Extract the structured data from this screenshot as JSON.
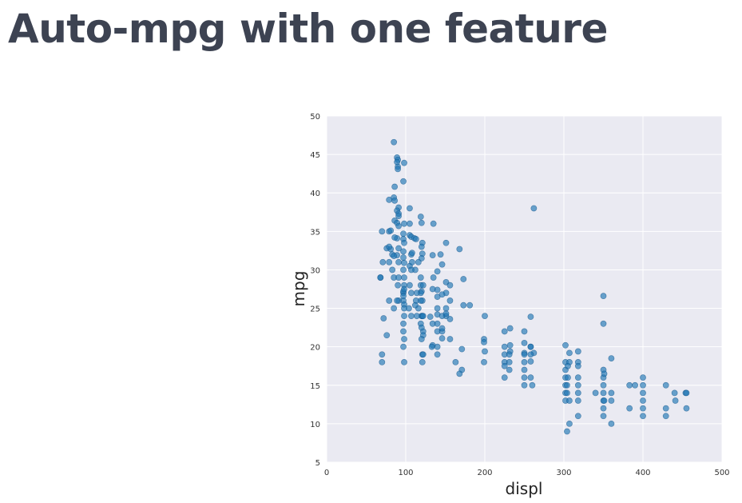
{
  "slide": {
    "title": "Auto-mpg with one feature"
  },
  "colors": {
    "title": "#3d4352",
    "plot_background": "#eaeaf2",
    "grid": "#ffffff",
    "point_fill": "#1f77b4",
    "point_stroke": "#0b4f85"
  },
  "chart_data": {
    "type": "scatter",
    "title": "",
    "xlabel": "displ",
    "ylabel": "mpg",
    "xlim": [
      0,
      500
    ],
    "ylim": [
      5,
      50
    ],
    "xticks": [
      0,
      100,
      200,
      300,
      400,
      500
    ],
    "yticks": [
      5,
      10,
      15,
      20,
      25,
      30,
      35,
      40,
      45,
      50
    ],
    "grid": true,
    "series": [
      {
        "points": [
          [
            85,
            46.6
          ],
          [
            89,
            44.6
          ],
          [
            90,
            44.3
          ],
          [
            89,
            44.0
          ],
          [
            98,
            43.9
          ],
          [
            90,
            43.4
          ],
          [
            90,
            43.1
          ],
          [
            97,
            41.5
          ],
          [
            86,
            40.8
          ],
          [
            79,
            39.1
          ],
          [
            85,
            39.4
          ],
          [
            86,
            39.0
          ],
          [
            91,
            38.1
          ],
          [
            89,
            37.7
          ],
          [
            91,
            37.3
          ],
          [
            105,
            38.0
          ],
          [
            91,
            37.0
          ],
          [
            119,
            36.9
          ],
          [
            86,
            36.4
          ],
          [
            89,
            36.1
          ],
          [
            98,
            36.0
          ],
          [
            105,
            36.0
          ],
          [
            120,
            36.1
          ],
          [
            135,
            36.0
          ],
          [
            91,
            35.7
          ],
          [
            70,
            35.0
          ],
          [
            79,
            35.0
          ],
          [
            81,
            35.1
          ],
          [
            97,
            34.7
          ],
          [
            105,
            34.5
          ],
          [
            107,
            34.3
          ],
          [
            111,
            34.1
          ],
          [
            89,
            34.1
          ],
          [
            97,
            34.0
          ],
          [
            113,
            34.0
          ],
          [
            86,
            34.2
          ],
          [
            121,
            33.5
          ],
          [
            151,
            33.5
          ],
          [
            98,
            33.5
          ],
          [
            91,
            32.8
          ],
          [
            76,
            32.8
          ],
          [
            81,
            32.7
          ],
          [
            97,
            32.4
          ],
          [
            121,
            32.1
          ],
          [
            83,
            32.0
          ],
          [
            107,
            32.0
          ],
          [
            134,
            31.9
          ],
          [
            144,
            32.0
          ],
          [
            168,
            32.7
          ],
          [
            89,
            31.9
          ],
          [
            85,
            31.8
          ],
          [
            97,
            31.6
          ],
          [
            120,
            31.5
          ],
          [
            79,
            31.0
          ],
          [
            71,
            31.0
          ],
          [
            91,
            31.0
          ],
          [
            98,
            30.9
          ],
          [
            105,
            30.5
          ],
          [
            108,
            31.0
          ],
          [
            146,
            30.7
          ],
          [
            112,
            30.0
          ],
          [
            97,
            30.0
          ],
          [
            68,
            29.0
          ],
          [
            85,
            29.0
          ],
          [
            98,
            29.0
          ],
          [
            91,
            29.0
          ],
          [
            135,
            29.0
          ],
          [
            140,
            29.8
          ],
          [
            119,
            28.0
          ],
          [
            98,
            28.0
          ],
          [
            105,
            28.0
          ],
          [
            122,
            28.0
          ],
          [
            151,
            28.4
          ],
          [
            156,
            28.0
          ],
          [
            173,
            28.8
          ],
          [
            97,
            27.0
          ],
          [
            107,
            27.0
          ],
          [
            120,
            27.2
          ],
          [
            119,
            27.0
          ],
          [
            140,
            27.4
          ],
          [
            134,
            27.5
          ],
          [
            151,
            27.0
          ],
          [
            146,
            26.8
          ],
          [
            181,
            25.4
          ],
          [
            97,
            26.0
          ],
          [
            121,
            26.0
          ],
          [
            113,
            26.0
          ],
          [
            140,
            26.5
          ],
          [
            98,
            25.5
          ],
          [
            116,
            25.0
          ],
          [
            98,
            25.0
          ],
          [
            104,
            25.0
          ],
          [
            140,
            25.0
          ],
          [
            120,
            24.0
          ],
          [
            121,
            24.0
          ],
          [
            114,
            24.0
          ],
          [
            98,
            24.0
          ],
          [
            140,
            24.2
          ],
          [
            151,
            24.0
          ],
          [
            156,
            23.6
          ],
          [
            107,
            24.0
          ],
          [
            131,
            23.9
          ],
          [
            146,
            24.0
          ],
          [
            200,
            24.0
          ],
          [
            119,
            23.0
          ],
          [
            97,
            23.0
          ],
          [
            122,
            22.0
          ],
          [
            97,
            22.0
          ],
          [
            140,
            22.0
          ],
          [
            225,
            22.0
          ],
          [
            232,
            22.4
          ],
          [
            250,
            22.0
          ],
          [
            98,
            21.0
          ],
          [
            122,
            21.5
          ],
          [
            120,
            21.0
          ],
          [
            146,
            21.1
          ],
          [
            199,
            21.0
          ],
          [
            232,
            20.2
          ],
          [
            250,
            20.5
          ],
          [
            258,
            20.0
          ],
          [
            97,
            20.0
          ],
          [
            140,
            20.0
          ],
          [
            134,
            20.2
          ],
          [
            171,
            19.7
          ],
          [
            199,
            20.6
          ],
          [
            225,
            20.0
          ],
          [
            232,
            19.4
          ],
          [
            250,
            19.2
          ],
          [
            262,
            19.2
          ],
          [
            302,
            20.2
          ],
          [
            121,
            19.0
          ],
          [
            140,
            19.0
          ],
          [
            200,
            19.4
          ],
          [
            225,
            19.0
          ],
          [
            231,
            19.0
          ],
          [
            250,
            19.0
          ],
          [
            258,
            19.0
          ],
          [
            307,
            19.2
          ],
          [
            318,
            19.4
          ],
          [
            70,
            19.0
          ],
          [
            70,
            18.0
          ],
          [
            98,
            18.0
          ],
          [
            121,
            18.0
          ],
          [
            163,
            18.0
          ],
          [
            199,
            18.0
          ],
          [
            225,
            18.0
          ],
          [
            231,
            18.0
          ],
          [
            250,
            18.0
          ],
          [
            258,
            18.1
          ],
          [
            302,
            18.0
          ],
          [
            307,
            18.0
          ],
          [
            318,
            18.0
          ],
          [
            360,
            18.5
          ],
          [
            171,
            17.0
          ],
          [
            231,
            17.0
          ],
          [
            250,
            17.0
          ],
          [
            302,
            17.0
          ],
          [
            305,
            17.5
          ],
          [
            318,
            17.5
          ],
          [
            350,
            17.0
          ],
          [
            168,
            16.5
          ],
          [
            225,
            16.0
          ],
          [
            250,
            16.0
          ],
          [
            258,
            16.0
          ],
          [
            302,
            16.0
          ],
          [
            305,
            16.0
          ],
          [
            318,
            16.0
          ],
          [
            350,
            16.0
          ],
          [
            351,
            16.5
          ],
          [
            400,
            16.0
          ],
          [
            250,
            15.0
          ],
          [
            260,
            15.0
          ],
          [
            302,
            15.0
          ],
          [
            304,
            15.0
          ],
          [
            318,
            15.0
          ],
          [
            350,
            15.0
          ],
          [
            383,
            15.0
          ],
          [
            390,
            15.0
          ],
          [
            400,
            15.0
          ],
          [
            429,
            15.0
          ],
          [
            302,
            14.0
          ],
          [
            304,
            14.0
          ],
          [
            318,
            14.0
          ],
          [
            350,
            14.0
          ],
          [
            340,
            14.0
          ],
          [
            360,
            14.0
          ],
          [
            400,
            14.0
          ],
          [
            440,
            14.0
          ],
          [
            454,
            14.0
          ],
          [
            455,
            14.0
          ],
          [
            302,
            13.0
          ],
          [
            307,
            13.0
          ],
          [
            318,
            13.0
          ],
          [
            350,
            13.0
          ],
          [
            351,
            13.0
          ],
          [
            360,
            13.0
          ],
          [
            400,
            13.0
          ],
          [
            429,
            12.0
          ],
          [
            441,
            13.0
          ],
          [
            350,
            12.0
          ],
          [
            383,
            12.0
          ],
          [
            400,
            12.0
          ],
          [
            455,
            12.0
          ],
          [
            318,
            11.0
          ],
          [
            350,
            11.0
          ],
          [
            400,
            11.0
          ],
          [
            429,
            11.0
          ],
          [
            307,
            10.0
          ],
          [
            360,
            10.0
          ],
          [
            304,
            9.0
          ],
          [
            350,
            26.6
          ],
          [
            350,
            23.0
          ],
          [
            262,
            38.0
          ],
          [
            258,
            23.9
          ],
          [
            258,
            20.0
          ],
          [
            225,
            17.5
          ],
          [
            156,
            26.0
          ],
          [
            173,
            25.4
          ],
          [
            146,
            22.0
          ],
          [
            156,
            21.0
          ],
          [
            151,
            25.0
          ],
          [
            116,
            31.0
          ],
          [
            120,
            33.0
          ],
          [
            107,
            30.0
          ],
          [
            108,
            32.2
          ],
          [
            97,
            27.2
          ],
          [
            91,
            26.0
          ],
          [
            89,
            26.0
          ],
          [
            85,
            25.0
          ],
          [
            79,
            26.0
          ],
          [
            79,
            33.0
          ],
          [
            68,
            29.0
          ],
          [
            72,
            23.7
          ],
          [
            76,
            21.5
          ],
          [
            83,
            30.0
          ],
          [
            90,
            28.0
          ],
          [
            98,
            27.5
          ],
          [
            97,
            26.6
          ],
          [
            112,
            25.4
          ],
          [
            114,
            27.0
          ],
          [
            119,
            29.0
          ],
          [
            119,
            26.0
          ],
          [
            120,
            22.5
          ],
          [
            122,
            24.0
          ],
          [
            134,
            23.0
          ],
          [
            140,
            23.0
          ],
          [
            146,
            22.4
          ],
          [
            151,
            24.3
          ],
          [
            122,
            19.0
          ],
          [
            133,
            20.0
          ]
        ]
      }
    ]
  }
}
